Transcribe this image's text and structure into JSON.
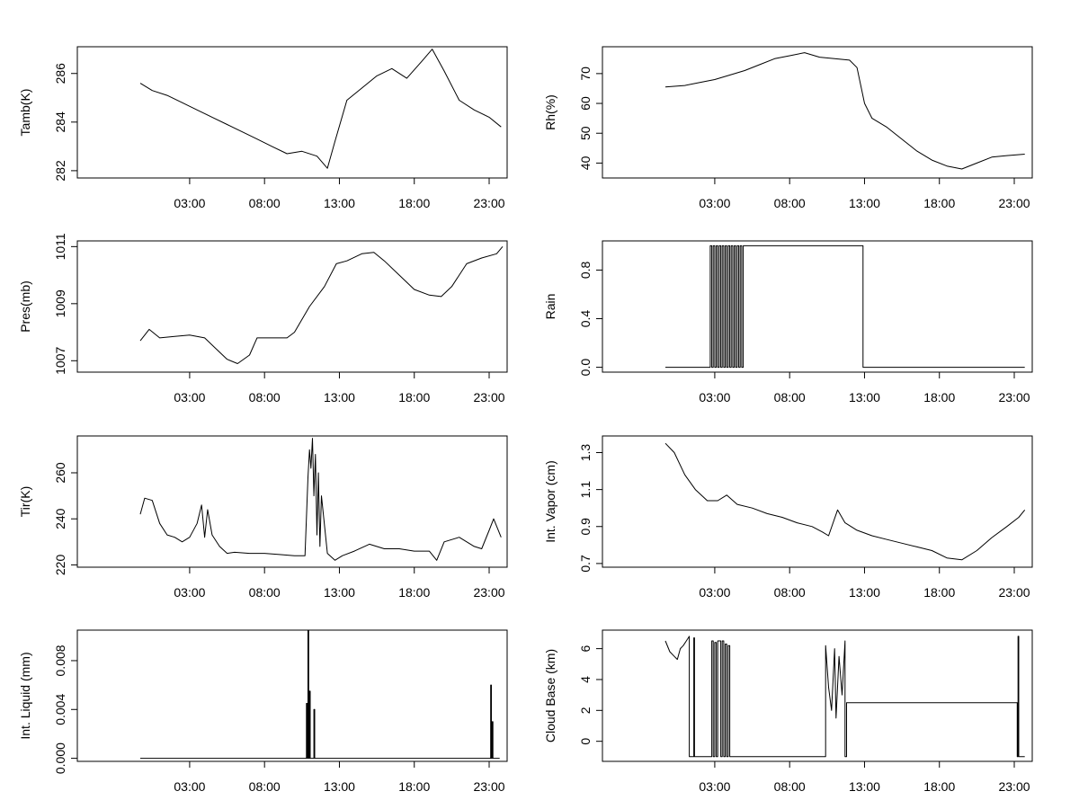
{
  "chart_data": [
    {
      "id": "tamb",
      "type": "line",
      "title": "",
      "xlabel": "",
      "ylabel": "Tamb(K)",
      "xlim": [
        -4.5,
        24.2
      ],
      "ylim": [
        281.7,
        287.1
      ],
      "x_ticks": [
        3,
        8,
        13,
        18,
        23
      ],
      "x_tick_labels": [
        "03:00",
        "08:00",
        "13:00",
        "18:00",
        "23:00"
      ],
      "y_ticks": [
        282,
        284,
        286
      ],
      "y_tick_labels": [
        "282",
        "284",
        "286"
      ],
      "series": [
        {
          "name": "Tamb",
          "x": [
            -0.3,
            0.5,
            1.5,
            2.5,
            3.5,
            4.5,
            5.5,
            6.5,
            7.5,
            8.5,
            9.5,
            10.5,
            11.5,
            12.2,
            12.7,
            13.5,
            14.5,
            15.5,
            16.5,
            17.5,
            18.5,
            19.2,
            20,
            21,
            22,
            23,
            23.8
          ],
          "y": [
            285.6,
            285.3,
            285.1,
            284.8,
            284.5,
            284.2,
            283.9,
            283.6,
            283.3,
            283,
            282.7,
            282.8,
            282.6,
            282.1,
            283.2,
            284.9,
            285.4,
            285.9,
            286.2,
            285.8,
            286.5,
            287,
            286.1,
            284.9,
            284.5,
            284.2,
            283.8
          ]
        }
      ]
    },
    {
      "id": "rh",
      "type": "line",
      "title": "",
      "xlabel": "",
      "ylabel": "Rh(%)",
      "xlim": [
        -4.5,
        24.2
      ],
      "ylim": [
        35,
        79
      ],
      "x_ticks": [
        3,
        8,
        13,
        18,
        23
      ],
      "x_tick_labels": [
        "03:00",
        "08:00",
        "13:00",
        "18:00",
        "23:00"
      ],
      "y_ticks": [
        40,
        50,
        60,
        70
      ],
      "y_tick_labels": [
        "40",
        "50",
        "60",
        "70"
      ],
      "series": [
        {
          "name": "Rh",
          "x": [
            -0.3,
            1,
            2,
            3,
            4,
            5,
            6,
            7,
            8,
            9,
            10,
            11,
            12,
            12.5,
            13,
            13.5,
            14.5,
            15.5,
            16.5,
            17.5,
            18.5,
            19.5,
            20.5,
            21.5,
            22.5,
            23.7
          ],
          "y": [
            65.5,
            66,
            67,
            68,
            69.5,
            71,
            73,
            75,
            76,
            77,
            75.5,
            75,
            74.5,
            72,
            60,
            55,
            52,
            48,
            44,
            41,
            39,
            38,
            40,
            42,
            42.5,
            43
          ]
        }
      ]
    },
    {
      "id": "pres",
      "type": "line",
      "title": "",
      "xlabel": "",
      "ylabel": "Pres(mb)",
      "xlim": [
        -4.5,
        24.2
      ],
      "ylim": [
        1006.6,
        1011.2
      ],
      "x_ticks": [
        3,
        8,
        13,
        18,
        23
      ],
      "x_tick_labels": [
        "03:00",
        "08:00",
        "13:00",
        "18:00",
        "23:00"
      ],
      "y_ticks": [
        1007,
        1009,
        1011
      ],
      "y_tick_labels": [
        "1007",
        "1009",
        "1011"
      ],
      "series": [
        {
          "name": "Pres",
          "x": [
            -0.3,
            0.3,
            1,
            2,
            3,
            4,
            4.8,
            5.5,
            6.2,
            7,
            7.5,
            8.5,
            9.5,
            10,
            11,
            12,
            12.8,
            13.5,
            14.5,
            15.3,
            16,
            17,
            18,
            19,
            19.8,
            20.5,
            21.5,
            22.5,
            23.5,
            23.9
          ],
          "y": [
            1007.7,
            1008.1,
            1007.8,
            1007.85,
            1007.9,
            1007.8,
            1007.4,
            1007.05,
            1006.9,
            1007.2,
            1007.8,
            1007.8,
            1007.8,
            1008,
            1008.9,
            1009.6,
            1010.4,
            1010.5,
            1010.75,
            1010.8,
            1010.5,
            1010,
            1009.5,
            1009.3,
            1009.25,
            1009.6,
            1010.4,
            1010.6,
            1010.75,
            1011
          ]
        }
      ]
    },
    {
      "id": "rain",
      "type": "line",
      "title": "",
      "xlabel": "",
      "ylabel": "Rain",
      "xlim": [
        -4.5,
        24.2
      ],
      "ylim": [
        -0.04,
        1.04
      ],
      "x_ticks": [
        3,
        8,
        13,
        18,
        23
      ],
      "x_tick_labels": [
        "03:00",
        "08:00",
        "13:00",
        "18:00",
        "23:00"
      ],
      "y_ticks": [
        0,
        0.4,
        0.8
      ],
      "y_tick_labels": [
        "0.0",
        "0.4",
        "0.8"
      ],
      "series": [
        {
          "name": "Rain",
          "x": [
            -0.3,
            2.7,
            2.7,
            2.8,
            2.8,
            2.9,
            2.9,
            3.0,
            3.0,
            3.1,
            3.1,
            3.2,
            3.2,
            3.3,
            3.3,
            3.4,
            3.4,
            3.5,
            3.5,
            3.6,
            3.6,
            3.7,
            3.7,
            3.8,
            3.8,
            3.9,
            3.9,
            4.0,
            4.0,
            4.1,
            4.1,
            4.2,
            4.2,
            4.3,
            4.3,
            4.4,
            4.4,
            4.5,
            4.5,
            4.6,
            4.6,
            4.7,
            4.7,
            4.8,
            4.8,
            4.9,
            4.9,
            12.9,
            12.9,
            23.7
          ],
          "y": [
            0,
            0,
            1,
            1,
            0,
            0,
            1,
            1,
            0,
            0,
            1,
            1,
            0,
            0,
            1,
            1,
            0,
            0,
            1,
            1,
            0,
            0,
            1,
            1,
            0,
            0,
            1,
            1,
            0,
            0,
            1,
            1,
            0,
            0,
            1,
            1,
            0,
            0,
            1,
            1,
            0,
            0,
            1,
            1,
            0,
            0,
            1,
            1,
            0,
            0
          ]
        }
      ]
    },
    {
      "id": "tir",
      "type": "line",
      "title": "",
      "xlabel": "",
      "ylabel": "Tir(K)",
      "xlim": [
        -4.5,
        24.2
      ],
      "ylim": [
        219,
        276
      ],
      "x_ticks": [
        3,
        8,
        13,
        18,
        23
      ],
      "x_tick_labels": [
        "03:00",
        "08:00",
        "13:00",
        "18:00",
        "23:00"
      ],
      "y_ticks": [
        220,
        240,
        260
      ],
      "y_tick_labels": [
        "220",
        "240",
        "260"
      ],
      "series": [
        {
          "name": "Tir",
          "x": [
            -0.3,
            0,
            0.5,
            1,
            1.5,
            2,
            2.5,
            3,
            3.5,
            3.8,
            4,
            4.2,
            4.5,
            5,
            5.5,
            6,
            7,
            8,
            9,
            10,
            10.7,
            10.9,
            11,
            11.1,
            11.2,
            11.3,
            11.4,
            11.5,
            11.6,
            11.7,
            11.8,
            12.2,
            12.7,
            13.2,
            14,
            15,
            16,
            17,
            18,
            19,
            19.5,
            20,
            21,
            22,
            22.5,
            23,
            23.3,
            23.8
          ],
          "y": [
            242,
            249,
            248,
            238,
            233,
            232,
            230,
            232,
            238,
            246,
            232,
            244,
            233,
            228,
            225,
            225.5,
            225,
            225,
            224.5,
            224,
            224,
            258,
            270,
            262,
            275,
            250,
            268,
            233,
            260,
            228,
            250,
            225,
            222,
            224,
            226,
            229,
            227,
            227,
            226,
            226,
            222,
            230,
            232,
            228,
            227,
            235,
            240,
            232
          ]
        }
      ]
    },
    {
      "id": "vapor",
      "type": "line",
      "title": "",
      "xlabel": "",
      "ylabel": "Int. Vapor (cm)",
      "xlim": [
        -4.5,
        24.2
      ],
      "ylim": [
        0.68,
        1.39
      ],
      "x_ticks": [
        3,
        8,
        13,
        18,
        23
      ],
      "x_tick_labels": [
        "03:00",
        "08:00",
        "13:00",
        "18:00",
        "23:00"
      ],
      "y_ticks": [
        0.7,
        0.9,
        1.1,
        1.3
      ],
      "y_tick_labels": [
        "0.7",
        "0.9",
        "1.1",
        "1.3"
      ],
      "series": [
        {
          "name": "Int. Vapor",
          "x": [
            -0.3,
            0.3,
            1,
            1.7,
            2.5,
            3.2,
            3.8,
            4.5,
            5.5,
            6.5,
            7.5,
            8.5,
            9.5,
            10.2,
            10.6,
            11.2,
            11.7,
            12.5,
            13.5,
            14.5,
            15.5,
            16.5,
            17.5,
            18.5,
            19.5,
            20.5,
            21.5,
            22.5,
            23.3,
            23.7
          ],
          "y": [
            1.35,
            1.3,
            1.18,
            1.1,
            1.04,
            1.04,
            1.07,
            1.02,
            1.0,
            0.97,
            0.95,
            0.92,
            0.9,
            0.87,
            0.85,
            0.99,
            0.92,
            0.88,
            0.85,
            0.83,
            0.81,
            0.79,
            0.77,
            0.73,
            0.72,
            0.77,
            0.84,
            0.9,
            0.95,
            0.99
          ]
        }
      ]
    },
    {
      "id": "liquid",
      "type": "line",
      "title": "",
      "xlabel": "",
      "ylabel": "Int. Liquid (mm)",
      "xlim": [
        -4.5,
        24.2
      ],
      "ylim": [
        -0.00025,
        0.0105
      ],
      "x_ticks": [
        3,
        8,
        13,
        18,
        23
      ],
      "x_tick_labels": [
        "03:00",
        "08:00",
        "13:00",
        "18:00",
        "23:00"
      ],
      "y_ticks": [
        0,
        0.004,
        0.008
      ],
      "y_tick_labels": [
        "0.000",
        "0.004",
        "0.008"
      ],
      "series": [
        {
          "name": "Int. Liquid",
          "x": [
            -0.3,
            10.8,
            10.8,
            10.85,
            10.85,
            10.9,
            10.9,
            10.95,
            10.95,
            11.0,
            11.0,
            11.05,
            11.05,
            11.3,
            11.3,
            11.35,
            11.35,
            23.1,
            23.1,
            23.15,
            23.15,
            23.2,
            23.2,
            23.25,
            23.25,
            23.7
          ],
          "y": [
            0,
            0,
            0.0045,
            0.0045,
            0,
            0,
            0.0105,
            0.0105,
            0,
            0,
            0.0055,
            0.0055,
            0,
            0,
            0.004,
            0.004,
            0,
            0,
            0.006,
            0.006,
            0,
            0,
            0.003,
            0.003,
            0,
            0
          ]
        }
      ]
    },
    {
      "id": "cloudbase",
      "type": "line",
      "title": "",
      "xlabel": "",
      "ylabel": "Cloud Base (km)",
      "xlim": [
        -4.5,
        24.2
      ],
      "ylim": [
        -1.3,
        7.2
      ],
      "x_ticks": [
        3,
        8,
        13,
        18,
        23
      ],
      "x_tick_labels": [
        "03:00",
        "08:00",
        "13:00",
        "18:00",
        "23:00"
      ],
      "y_ticks": [
        0,
        2,
        4,
        6
      ],
      "y_tick_labels": [
        "0",
        "2",
        "4",
        "6"
      ],
      "series": [
        {
          "name": "Cloud Base",
          "x": [
            -0.3,
            0,
            0.3,
            0.5,
            0.7,
            0.9,
            1.1,
            1.3,
            1.3,
            1.6,
            1.6,
            1.65,
            1.65,
            2.8,
            2.8,
            2.9,
            2.9,
            3.0,
            3.0,
            3.1,
            3.1,
            3.2,
            3.2,
            3.4,
            3.4,
            3.5,
            3.5,
            3.6,
            3.6,
            3.7,
            3.7,
            3.8,
            3.8,
            3.9,
            3.9,
            4.0,
            4.0,
            10.4,
            10.4,
            10.6,
            10.8,
            11.0,
            11.1,
            11.3,
            11.5,
            11.7,
            11.7,
            11.8,
            11.8,
            23.2,
            23.2,
            23.25,
            23.25,
            23.3,
            23.3,
            23.7
          ],
          "y": [
            6.5,
            5.8,
            5.5,
            5.3,
            6.0,
            6.2,
            6.5,
            6.8,
            -1,
            -1,
            6.7,
            6.7,
            -1,
            -1,
            6.5,
            6.5,
            -1,
            -1,
            6.4,
            6.4,
            -1,
            -1,
            6.5,
            6.5,
            -1,
            -1,
            6.5,
            6.5,
            -1,
            -1,
            6.3,
            6.3,
            -1,
            -1,
            6.2,
            6.2,
            -1,
            -1,
            6.2,
            3.5,
            2.0,
            6.0,
            1.5,
            5.5,
            3.0,
            6.5,
            -1,
            -1,
            2.5,
            2.5,
            -1,
            -1,
            6.8,
            6.8,
            -1,
            -1
          ]
        }
      ]
    }
  ]
}
